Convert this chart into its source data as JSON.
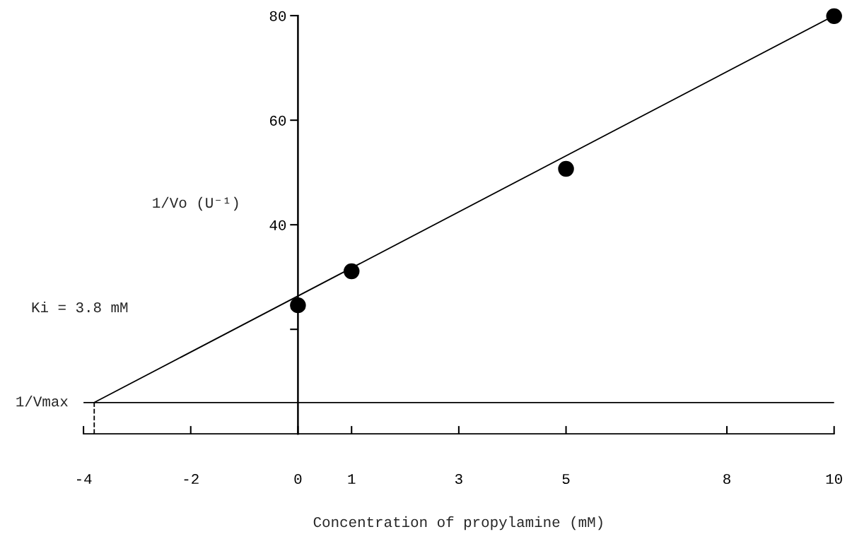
{
  "chart_data": {
    "type": "scatter",
    "xlabel": "Concentration of propylamine (mM)",
    "ylabel": "1/Vo (U⁻¹)",
    "series": [
      {
        "color": "#000000",
        "marker": "circle",
        "x": [
          0,
          1,
          5,
          10
        ],
        "values": [
          24.6,
          31.1,
          50.7,
          79.9
        ]
      },
      {
        "type": "line",
        "color": "#000000",
        "line_style": "solid",
        "x": [
          -3.8,
          10
        ],
        "values": [
          6,
          80
        ]
      },
      {
        "type": "line",
        "color": "#000000",
        "line_style": "dashed",
        "x": [
          -3.8,
          -3.8
        ],
        "values": [
          0,
          6
        ]
      }
    ],
    "ref_lines": [
      {
        "axis": "y",
        "value": 6,
        "label": "1/Vmax",
        "color": "#000000"
      }
    ],
    "annotations": [
      "Ki = 3.8 mM"
    ],
    "xlim": [
      -4,
      10
    ],
    "xticks": [
      -4,
      -2,
      0,
      1,
      3,
      5,
      8,
      10
    ],
    "ylim": [
      0,
      80
    ],
    "yticks": [
      {
        "value": 20,
        "label": null
      },
      40,
      60,
      80
    ],
    "grid": false,
    "legend": false
  }
}
